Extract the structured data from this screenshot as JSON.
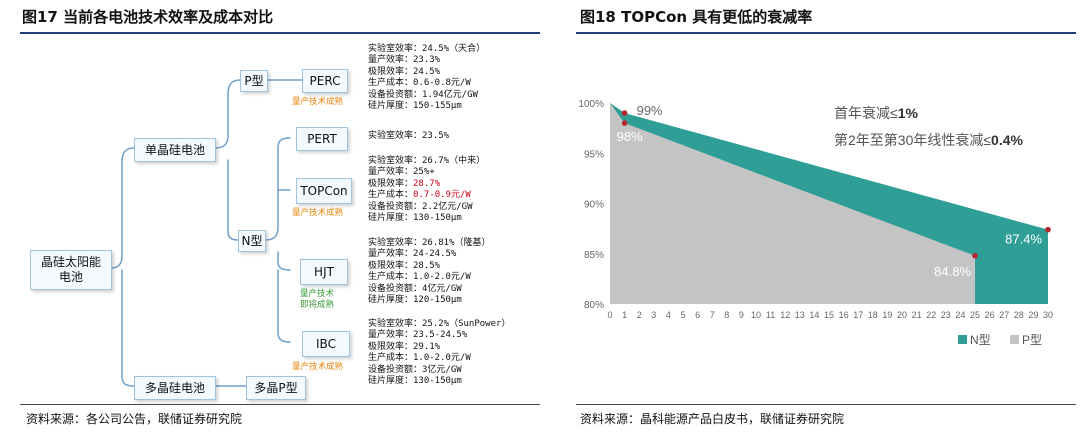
{
  "left": {
    "title": "图17 当前各电池技术效率及成本对比",
    "source": "资料来源：各公司公告，联储证券研究院",
    "nodes": {
      "root": "晶硅太阳能电池",
      "mono": "单晶硅电池",
      "poly": "多晶硅电池",
      "ptype": "P型",
      "ntype": "N型",
      "perc": "PERC",
      "pert": "PERT",
      "topcon": "TOPCon",
      "hjt": "HJT",
      "ibc": "IBC",
      "polyp": "多晶P型"
    },
    "tags": {
      "perc": "量产技术成熟",
      "topcon": "量产技术成熟",
      "hjt_line1": "量产技术",
      "hjt_line2": "即将成熟",
      "ibc": "量产技术成熟"
    },
    "specs": {
      "perc": [
        "实验室效率：24.5%（天合）",
        "量产效率：23.3%",
        "极限效率：24.5%",
        "生产成本：0.6-0.8元/W",
        "设备投资额：1.94亿元/GW",
        "硅片厚度：150-155μm"
      ],
      "pert": [
        "实验室效率：23.5%"
      ],
      "topcon": {
        "l1": "实验室效率：26.7%（中来）",
        "l2": "量产效率：25%+",
        "l3_label": "极限效率：",
        "l3_value": "28.7%",
        "l4_label": "生产成本：",
        "l4_value": "0.7-0.9元/W",
        "l5": "设备投资额：2.2亿元/GW",
        "l6": "硅片厚度：130-150μm"
      },
      "hjt": [
        "实验室效率：26.81%（隆基）",
        "量产效率：24-24.5%",
        "极限效率：28.5%",
        "生产成本：1.0-2.0元/W",
        "设备投资额：4亿元/GW",
        "硅片厚度：120-150μm"
      ],
      "ibc": [
        "实验室效率：25.2%（SunPower）",
        "量产效率：23.5-24.5%",
        "极限效率：29.1%",
        "生产成本：1.0-2.0元/W",
        "设备投资额：3亿元/GW",
        "硅片厚度：130-150μm"
      ]
    }
  },
  "right": {
    "title": "图18 TOPCon 具有更低的衰减率",
    "source": "资料来源：晶科能源产品白皮书，联储证券研究院",
    "annotation1_prefix": "首年衰减≤",
    "annotation1_value": "1%",
    "annotation2_prefix": "第2年至第30年线性衰减≤",
    "annotation2_value": "0.4%",
    "colors": {
      "n_type": "#2f9e96",
      "p_type": "#c4c4c4",
      "marker": "#b5272d"
    }
  },
  "chart_data": {
    "type": "area",
    "title": "TOPCon 具有更低的衰减率",
    "xlabel": "",
    "ylabel": "",
    "x_ticks": [
      0,
      1,
      2,
      3,
      4,
      5,
      6,
      7,
      8,
      9,
      10,
      11,
      12,
      13,
      14,
      15,
      16,
      17,
      18,
      19,
      20,
      21,
      22,
      23,
      24,
      25,
      26,
      27,
      28,
      29,
      30
    ],
    "y_ticks": [
      "80%",
      "85%",
      "90%",
      "95%",
      "100%"
    ],
    "xlim": [
      0,
      30
    ],
    "ylim": [
      80,
      100
    ],
    "legend_position": "bottom-right",
    "series": [
      {
        "name": "N型",
        "x": [
          0,
          1,
          30
        ],
        "values": [
          100,
          99,
          87.4
        ]
      },
      {
        "name": "P型",
        "x": [
          0,
          1,
          25
        ],
        "values": [
          100,
          98,
          84.8
        ]
      }
    ],
    "data_labels": [
      {
        "x": 1,
        "y": 99,
        "text": "99%"
      },
      {
        "x": 1,
        "y": 98,
        "text": "98%"
      },
      {
        "x": 25,
        "y": 84.8,
        "text": "84.8%"
      },
      {
        "x": 30,
        "y": 87.4,
        "text": "87.4%"
      }
    ]
  }
}
